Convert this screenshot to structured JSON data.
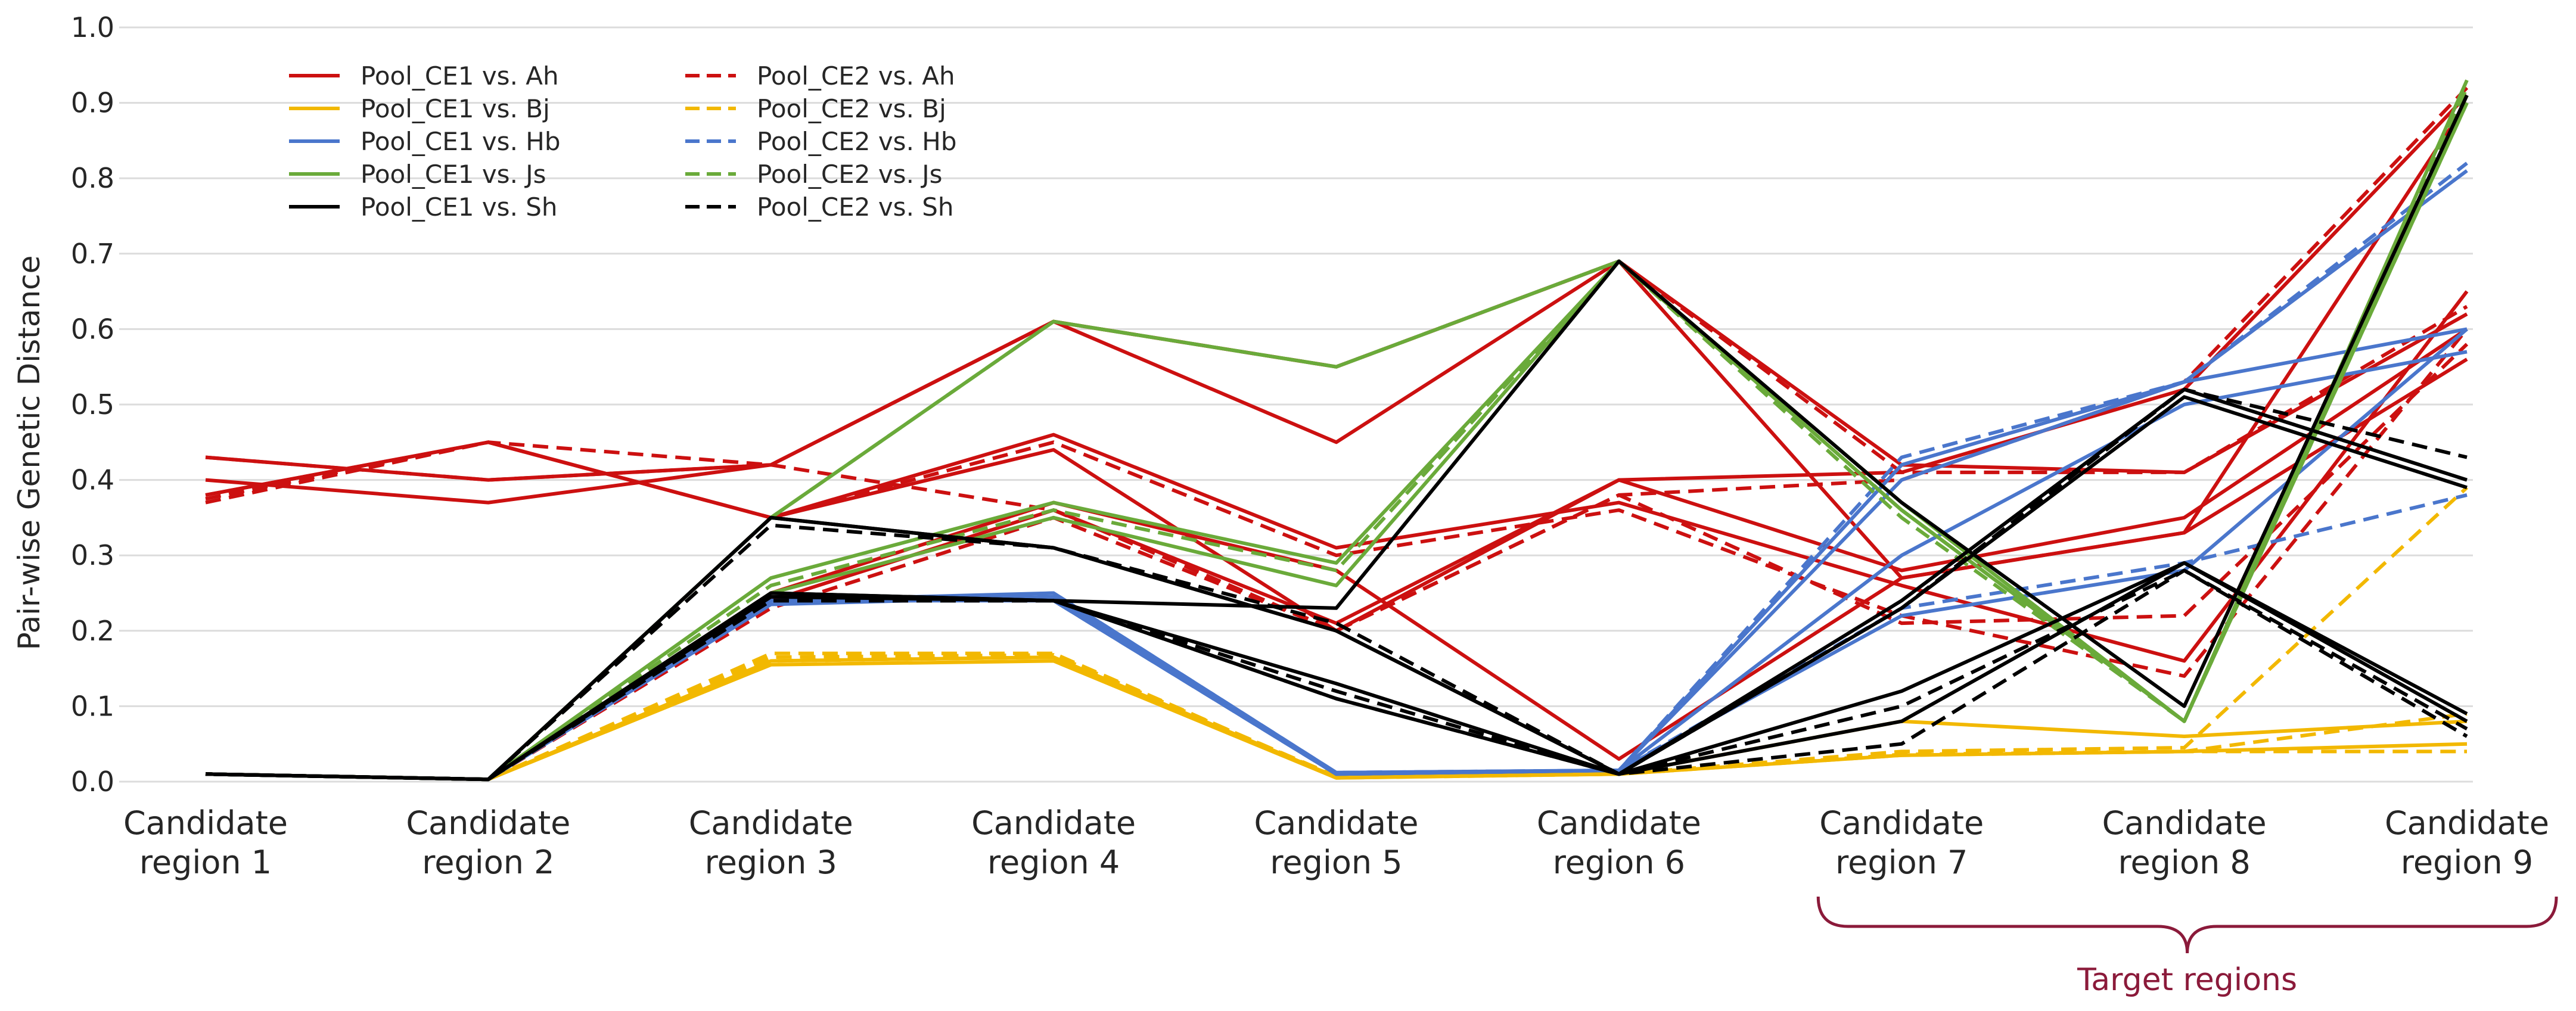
{
  "chart_data": {
    "type": "line",
    "title": "",
    "xlabel": "",
    "ylabel": "Pair-wise Genetic Distance",
    "ylim": [
      0,
      1.0
    ],
    "yticks": [
      "0.0",
      "0.1",
      "0.2",
      "0.3",
      "0.4",
      "0.5",
      "0.6",
      "0.7",
      "0.8",
      "0.9",
      "1.0"
    ],
    "grid": "horizontal",
    "legend_position": "top-left",
    "categories": [
      [
        "Candidate",
        "region 1"
      ],
      [
        "Candidate",
        "region 2"
      ],
      [
        "Candidate",
        "region 3"
      ],
      [
        "Candidate",
        "region 4"
      ],
      [
        "Candidate",
        "region 5"
      ],
      [
        "Candidate",
        "region 6"
      ],
      [
        "Candidate",
        "region 7"
      ],
      [
        "Candidate",
        "region 8"
      ],
      [
        "Candidate",
        "region 9"
      ]
    ],
    "legend": [
      {
        "name": "Pool_CE1 vs. Ah",
        "color": "#cc1010",
        "style": "solid"
      },
      {
        "name": "Pool_CE1 vs. Bj",
        "color": "#f2b800",
        "style": "solid"
      },
      {
        "name": "Pool_CE1 vs. Hb",
        "color": "#4a76cc",
        "style": "solid"
      },
      {
        "name": "Pool_CE1 vs. Js",
        "color": "#6aaa3a",
        "style": "solid"
      },
      {
        "name": "Pool_CE1 vs. Sh",
        "color": "#000000",
        "style": "solid"
      },
      {
        "name": "Pool_CE2 vs. Ah",
        "color": "#cc1010",
        "style": "dashed"
      },
      {
        "name": "Pool_CE2 vs. Bj",
        "color": "#f2b800",
        "style": "dashed"
      },
      {
        "name": "Pool_CE2 vs. Hb",
        "color": "#4a76cc",
        "style": "dashed"
      },
      {
        "name": "Pool_CE2 vs. Js",
        "color": "#6aaa3a",
        "style": "dashed"
      },
      {
        "name": "Pool_CE2 vs. Sh",
        "color": "#000000",
        "style": "dashed"
      }
    ],
    "annotation": {
      "text": "Target regions",
      "from_region": 7,
      "to_region": 9,
      "color": "#8b1a3a"
    },
    "series": [
      {
        "name": "Pool_CE1 vs. Ah",
        "color": "#cc1010",
        "style": "solid",
        "values": [
          0.43,
          0.4,
          0.42,
          0.61,
          0.55,
          0.69,
          0.42,
          0.41,
          0.62
        ]
      },
      {
        "name": "Pool_CE2 vs. Ah",
        "color": "#cc1010",
        "style": "dashed",
        "values": [
          0.43,
          0.4,
          0.42,
          0.61,
          0.55,
          0.69,
          0.41,
          0.41,
          0.63
        ]
      },
      {
        "name": "Pool_CE1 vs. Ah",
        "color": "#cc1010",
        "style": "solid",
        "values": [
          0.4,
          0.37,
          0.42,
          0.61,
          0.45,
          0.69,
          0.27,
          0.33,
          0.9
        ]
      },
      {
        "name": "Pool_CE2 vs. Ah",
        "color": "#cc1010",
        "style": "dashed",
        "values": [
          0.37,
          0.45,
          0.42,
          0.36,
          0.2,
          0.38,
          0.4,
          0.53,
          0.92
        ]
      },
      {
        "name": "Pool_CE1 vs. Ah",
        "color": "#cc1010",
        "style": "solid",
        "values": [
          0.38,
          0.45,
          0.35,
          0.44,
          0.2,
          0.4,
          0.41,
          0.52,
          0.91
        ]
      },
      {
        "name": "Pool_CE2 vs. Ah",
        "color": "#cc1010",
        "style": "dashed",
        "values": [
          0.375,
          0.45,
          0.35,
          0.45,
          0.3,
          0.36,
          0.22,
          0.14,
          0.6
        ]
      },
      {
        "name": "Pool_CE1 vs. Ah",
        "color": "#cc1010",
        "style": "solid",
        "values": [
          0.38,
          0.45,
          0.35,
          0.46,
          0.31,
          0.37,
          0.26,
          0.16,
          0.65
        ]
      },
      {
        "name": "Pool_CE1 vs. Ah",
        "color": "#cc1010",
        "style": "solid",
        "values": [
          0.01,
          0.003,
          0.24,
          0.36,
          0.21,
          0.4,
          0.28,
          0.35,
          0.6
        ]
      },
      {
        "name": "Pool_CE2 vs. Ah",
        "color": "#cc1010",
        "style": "dashed",
        "values": [
          0.01,
          0.003,
          0.23,
          0.35,
          0.2,
          0.38,
          0.21,
          0.22,
          0.58
        ]
      },
      {
        "name": "Pool_CE1 vs. Ah",
        "color": "#cc1010",
        "style": "solid",
        "values": [
          0.01,
          0.003,
          0.25,
          0.37,
          0.28,
          0.03,
          0.27,
          0.33,
          0.56
        ]
      },
      {
        "name": "Pool_CE1 vs. Bj",
        "color": "#f2b800",
        "style": "solid",
        "values": [
          0.01,
          0.003,
          0.155,
          0.16,
          0.005,
          0.01,
          0.08,
          0.06,
          0.08
        ]
      },
      {
        "name": "Pool_CE2 vs. Bj",
        "color": "#f2b800",
        "style": "dashed",
        "values": [
          0.01,
          0.003,
          0.16,
          0.165,
          0.005,
          0.01,
          0.035,
          0.04,
          0.09
        ]
      },
      {
        "name": "Pool_CE1 vs. Bj",
        "color": "#f2b800",
        "style": "solid",
        "values": [
          0.01,
          0.003,
          0.16,
          0.165,
          0.006,
          0.01,
          0.035,
          0.04,
          0.05
        ]
      },
      {
        "name": "Pool_CE2 vs. Bj",
        "color": "#f2b800",
        "style": "dashed",
        "values": [
          0.01,
          0.003,
          0.17,
          0.17,
          0.006,
          0.01,
          0.036,
          0.04,
          0.04
        ]
      },
      {
        "name": "Pool_CE2 vs. Bj",
        "color": "#f2b800",
        "style": "dashed",
        "values": [
          0.01,
          0.003,
          0.165,
          0.168,
          0.007,
          0.01,
          0.04,
          0.045,
          0.39
        ]
      },
      {
        "name": "Pool_CE1 vs. Hb",
        "color": "#4a76cc",
        "style": "solid",
        "values": [
          0.01,
          0.003,
          0.24,
          0.24,
          0.01,
          0.015,
          0.42,
          0.53,
          0.6
        ]
      },
      {
        "name": "Pool_CE2 vs. Hb",
        "color": "#4a76cc",
        "style": "dashed",
        "values": [
          0.01,
          0.003,
          0.24,
          0.24,
          0.01,
          0.015,
          0.43,
          0.53,
          0.82
        ]
      },
      {
        "name": "Pool_CE1 vs. Hb",
        "color": "#4a76cc",
        "style": "solid",
        "values": [
          0.01,
          0.003,
          0.24,
          0.245,
          0.01,
          0.015,
          0.4,
          0.53,
          0.81
        ]
      },
      {
        "name": "Pool_CE1 vs. Hb",
        "color": "#4a76cc",
        "style": "solid",
        "values": [
          0.01,
          0.003,
          0.24,
          0.25,
          0.012,
          0.015,
          0.3,
          0.5,
          0.57
        ]
      },
      {
        "name": "Pool_CE2 vs. Hb",
        "color": "#4a76cc",
        "style": "dashed",
        "values": [
          0.01,
          0.003,
          0.235,
          0.25,
          0.012,
          0.015,
          0.23,
          0.29,
          0.38
        ]
      },
      {
        "name": "Pool_CE1 vs. Hb",
        "color": "#4a76cc",
        "style": "solid",
        "values": [
          0.01,
          0.003,
          0.235,
          0.245,
          0.01,
          0.015,
          0.22,
          0.28,
          0.6
        ]
      },
      {
        "name": "Pool_CE1 vs. Js",
        "color": "#6aaa3a",
        "style": "solid",
        "values": [
          0.01,
          0.003,
          0.35,
          0.61,
          0.55,
          0.69,
          0.37,
          0.08,
          0.93
        ]
      },
      {
        "name": "Pool_CE2 vs. Js",
        "color": "#6aaa3a",
        "style": "dashed",
        "values": [
          0.01,
          0.003,
          0.35,
          0.61,
          0.55,
          0.69,
          0.36,
          0.08,
          0.92
        ]
      },
      {
        "name": "Pool_CE1 vs. Js",
        "color": "#6aaa3a",
        "style": "solid",
        "values": [
          0.01,
          0.003,
          0.27,
          0.37,
          0.29,
          0.69,
          0.36,
          0.08,
          0.9
        ]
      },
      {
        "name": "Pool_CE2 vs. Js",
        "color": "#6aaa3a",
        "style": "dashed",
        "values": [
          0.01,
          0.003,
          0.26,
          0.36,
          0.28,
          0.69,
          0.35,
          0.08,
          0.9
        ]
      },
      {
        "name": "Pool_CE1 vs. Js",
        "color": "#6aaa3a",
        "style": "solid",
        "values": [
          0.01,
          0.003,
          0.25,
          0.35,
          0.26,
          0.69,
          0.36,
          0.08,
          0.91
        ]
      },
      {
        "name": "Pool_CE1 vs. Sh",
        "color": "#000000",
        "style": "solid",
        "values": [
          0.01,
          0.003,
          0.35,
          0.31,
          0.2,
          0.01,
          0.24,
          0.52,
          0.4
        ]
      },
      {
        "name": "Pool_CE2 vs. Sh",
        "color": "#000000",
        "style": "dashed",
        "values": [
          0.01,
          0.003,
          0.34,
          0.31,
          0.21,
          0.01,
          0.23,
          0.52,
          0.43
        ]
      },
      {
        "name": "Pool_CE1 vs. Sh",
        "color": "#000000",
        "style": "solid",
        "values": [
          0.01,
          0.003,
          0.35,
          0.31,
          0.2,
          0.01,
          0.23,
          0.51,
          0.39
        ]
      },
      {
        "name": "Pool_CE1 vs. Sh",
        "color": "#000000",
        "style": "solid",
        "values": [
          0.01,
          0.003,
          0.25,
          0.24,
          0.23,
          0.69,
          0.37,
          0.1,
          0.91
        ]
      },
      {
        "name": "Pool_CE1 vs. Sh",
        "color": "#000000",
        "style": "solid",
        "values": [
          0.01,
          0.003,
          0.25,
          0.24,
          0.13,
          0.01,
          0.12,
          0.29,
          0.09
        ]
      },
      {
        "name": "Pool_CE2 vs. Sh",
        "color": "#000000",
        "style": "dashed",
        "values": [
          0.01,
          0.003,
          0.24,
          0.24,
          0.12,
          0.01,
          0.1,
          0.28,
          0.07
        ]
      },
      {
        "name": "Pool_CE1 vs. Sh",
        "color": "#000000",
        "style": "solid",
        "values": [
          0.01,
          0.003,
          0.245,
          0.24,
          0.11,
          0.01,
          0.08,
          0.29,
          0.08
        ]
      },
      {
        "name": "Pool_CE2 vs. Sh",
        "color": "#000000",
        "style": "dashed",
        "values": [
          0.01,
          0.003,
          0.24,
          0.24,
          0.11,
          0.01,
          0.05,
          0.28,
          0.06
        ]
      }
    ]
  }
}
